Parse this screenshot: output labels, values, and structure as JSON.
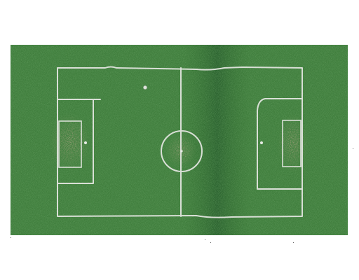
{
  "image": {
    "subject": "soccer-pitch",
    "surface_color": "#3f7d3c",
    "stripe_color": "#2f6a2c",
    "line_color": "#d9dfd6",
    "worn_turf_color": "#8a6a4a",
    "background_color": "#ffffff",
    "icons": [
      "pitch-outline",
      "halfway-line",
      "center-circle",
      "goal-area",
      "penalty-area",
      "penalty-spot",
      "ball"
    ]
  }
}
